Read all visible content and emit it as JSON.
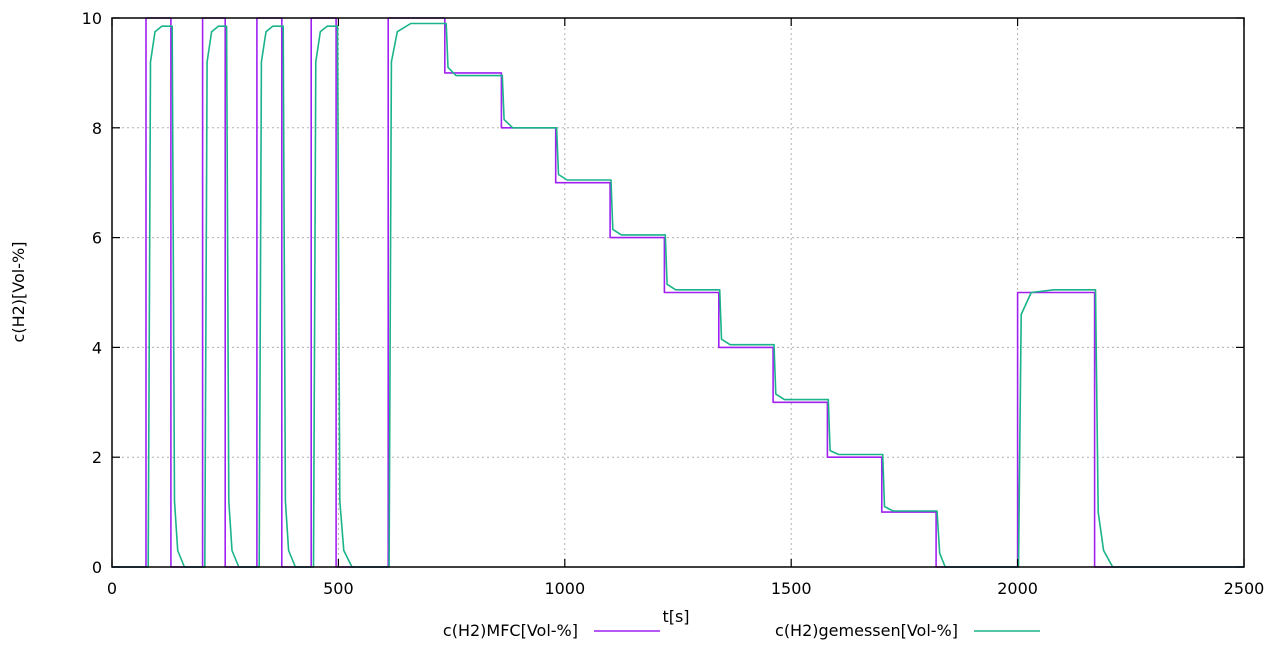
{
  "chart_data": {
    "type": "line",
    "title": "",
    "xlabel": "t[s]",
    "ylabel": "c(H2)[Vol-%]",
    "xlim": [
      0,
      2500
    ],
    "ylim": [
      0,
      10
    ],
    "xticks": [
      0,
      500,
      1000,
      1500,
      2000,
      2500
    ],
    "yticks": [
      0,
      2,
      4,
      6,
      8,
      10
    ],
    "x_tick_labels": [
      "0",
      "500",
      "1000",
      "1500",
      "2000",
      "2500"
    ],
    "y_tick_labels": [
      "0",
      "2",
      "4",
      "6",
      "8",
      "10"
    ],
    "grid": true,
    "legend_position": "bottom",
    "series": [
      {
        "name": "c(H2)MFC[Vol-%]",
        "color": "#a020f0",
        "x": [
          0,
          75,
          75,
          130,
          130,
          200,
          200,
          250,
          250,
          320,
          320,
          375,
          375,
          440,
          440,
          495,
          495,
          610,
          610,
          735,
          735,
          860,
          860,
          980,
          980,
          1100,
          1100,
          1220,
          1220,
          1340,
          1340,
          1460,
          1460,
          1580,
          1580,
          1700,
          1700,
          1820,
          1820,
          2000,
          2000,
          2170,
          2170,
          2500
        ],
        "y": [
          0,
          0,
          10,
          10,
          0,
          0,
          10,
          10,
          0,
          0,
          10,
          10,
          0,
          0,
          10,
          10,
          0,
          0,
          10,
          10,
          9,
          9,
          8,
          8,
          7,
          7,
          6,
          6,
          5,
          5,
          4,
          4,
          3,
          3,
          2,
          2,
          1,
          1,
          0,
          0,
          5,
          5,
          0,
          0
        ]
      },
      {
        "name": "c(H2)gemessen[Vol-%]",
        "color": "#1ab38a",
        "x": [
          0,
          80,
          85,
          95,
          110,
          133,
          138,
          145,
          160,
          205,
          210,
          220,
          235,
          253,
          258,
          265,
          280,
          325,
          330,
          340,
          355,
          378,
          383,
          390,
          405,
          445,
          450,
          460,
          475,
          498,
          503,
          512,
          530,
          612,
          617,
          630,
          660,
          738,
          742,
          760,
          862,
          866,
          885,
          982,
          986,
          1005,
          1102,
          1106,
          1125,
          1222,
          1226,
          1245,
          1342,
          1346,
          1365,
          1462,
          1466,
          1485,
          1582,
          1586,
          1605,
          1702,
          1706,
          1725,
          1822,
          1828,
          1840,
          2002,
          2008,
          2030,
          2080,
          2172,
          2178,
          2190,
          2210,
          2500
        ],
        "y": [
          0,
          0,
          9.2,
          9.75,
          9.85,
          9.85,
          1.2,
          0.3,
          0,
          0,
          9.2,
          9.75,
          9.85,
          9.85,
          1.2,
          0.3,
          0,
          0,
          9.2,
          9.75,
          9.85,
          9.85,
          1.2,
          0.3,
          0,
          0,
          9.2,
          9.75,
          9.85,
          9.85,
          1.2,
          0.3,
          0,
          0,
          9.2,
          9.75,
          9.9,
          9.9,
          9.1,
          8.95,
          8.95,
          8.15,
          8.0,
          8.0,
          7.15,
          7.05,
          7.05,
          6.15,
          6.05,
          6.05,
          5.15,
          5.05,
          5.05,
          4.15,
          4.05,
          4.05,
          3.15,
          3.05,
          3.05,
          2.12,
          2.05,
          2.05,
          1.1,
          1.02,
          1.02,
          0.25,
          0,
          0,
          4.6,
          5.0,
          5.05,
          5.05,
          1.0,
          0.3,
          0,
          0
        ]
      }
    ]
  }
}
